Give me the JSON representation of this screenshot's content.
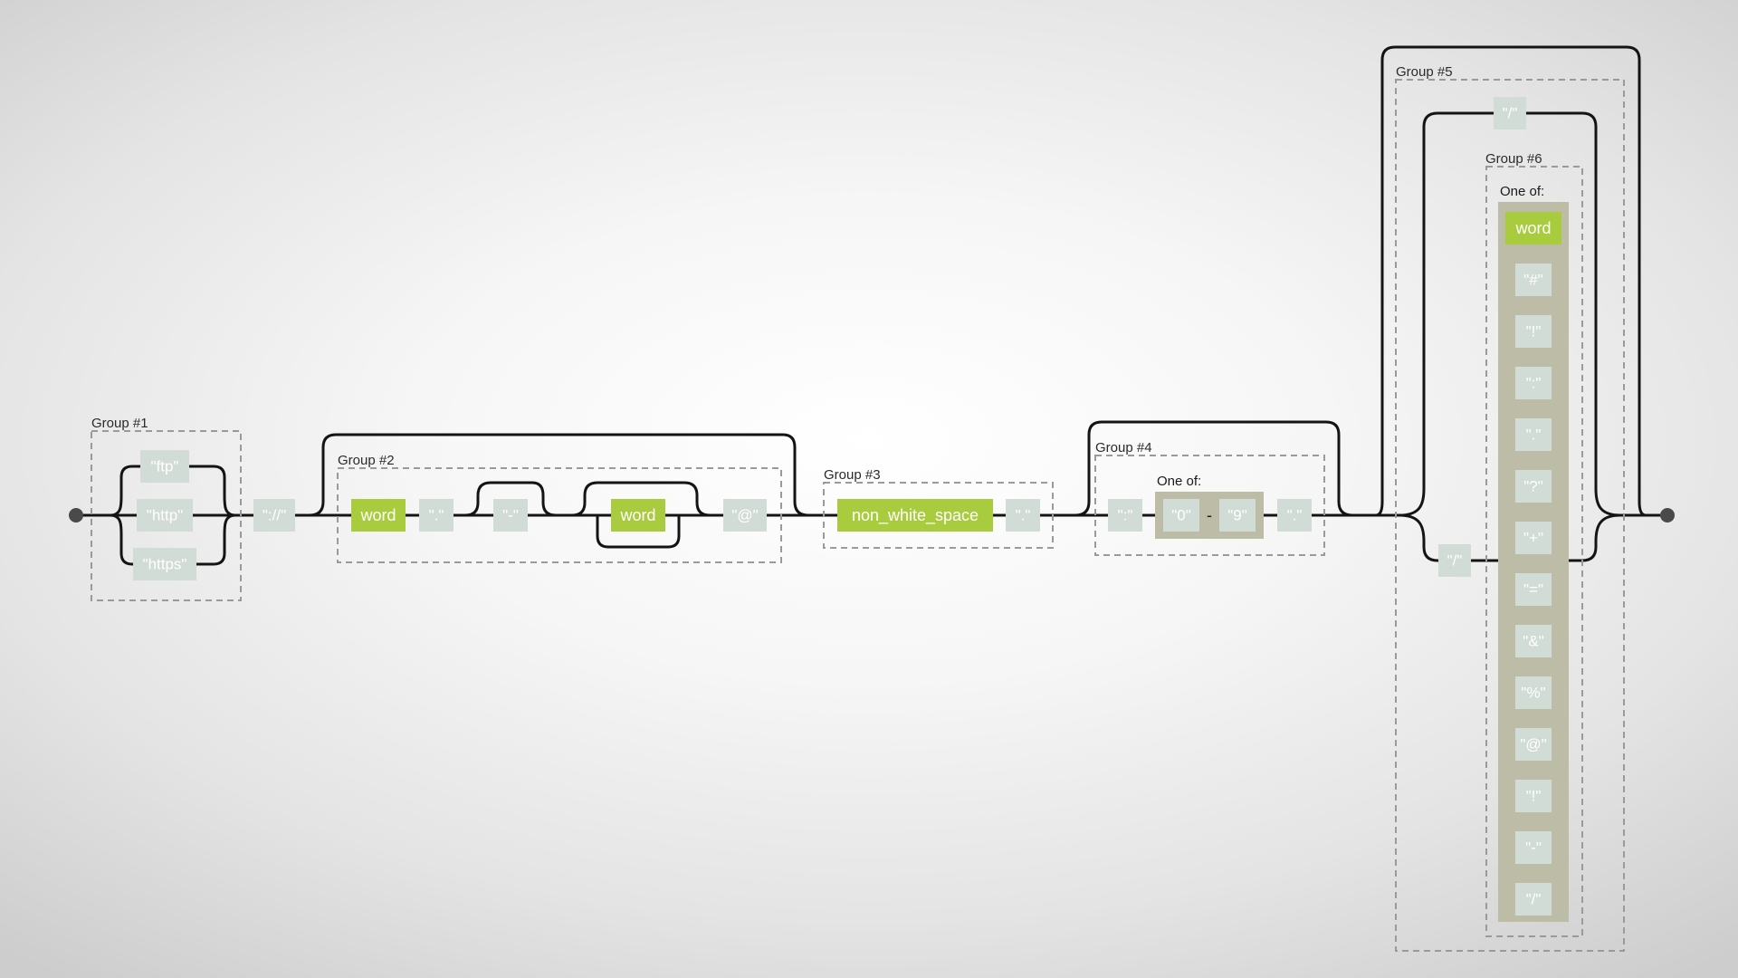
{
  "groups": {
    "g1": "Group #1",
    "g2": "Group #2",
    "g3": "Group #3",
    "g4": "Group #4",
    "g5": "Group #5",
    "g6": "Group #6"
  },
  "one_of_label": "One of:",
  "nodes": {
    "ftp": "\"ftp\"",
    "http": "\"http\"",
    "https": "\"https\"",
    "scheme_sep": "\"://\"",
    "word1": "word",
    "dot1": "\".\"",
    "dash1": "\"-\"",
    "word2": "word",
    "at": "\"@\"",
    "non_white_space": "non_white_space",
    "dot2": "\".\"",
    "colon": "\":\"",
    "digit_from": "\"0\"",
    "range_dash": "-",
    "digit_to": "\"9\"",
    "dot3": "\".\"",
    "slash_top": "\"/\"",
    "slash_bottom": "\"/\""
  },
  "g6_items": [
    "word",
    "\"#\"",
    "\"!\"",
    "\":\"",
    "\".\"",
    "\"?\"",
    "\"+\"",
    "\"=\"",
    "\"&\"",
    "\"%\"",
    "\"@\"",
    "\"!\"",
    "\"-\"",
    "\"/\""
  ],
  "colors": {
    "wire": "#141414",
    "literal": "#d2dcd6",
    "char_class": "#a9cb3e",
    "set_background": "#bdbca6",
    "group_border": "#9a9a9a"
  }
}
